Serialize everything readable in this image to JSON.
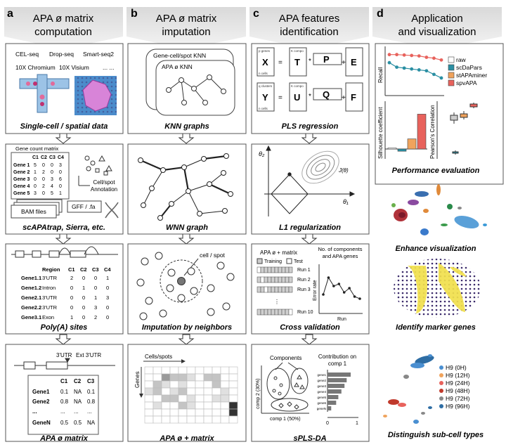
{
  "columns": [
    {
      "letter": "a",
      "title_lines": [
        "APA ø matrix",
        "computation"
      ]
    },
    {
      "letter": "b",
      "title_lines": [
        "APA ø matrix",
        "imputation"
      ]
    },
    {
      "letter": "c",
      "title_lines": [
        "APA features",
        "identification"
      ]
    },
    {
      "letter": "d",
      "title_lines": [
        "Application",
        "and visualization"
      ]
    }
  ],
  "colA": {
    "tech_row1": [
      "CEL-seq",
      "Drop-seq",
      "Smart-seq2"
    ],
    "tech_row2": [
      "10X Chromium",
      "10X Visium",
      "... ..."
    ],
    "caption1": "Single-cell / spatial data",
    "gene_count_title": "Gene count matrix",
    "gc_cols": [
      "C1",
      "C2",
      "C3",
      "C4"
    ],
    "gc_rows": [
      [
        "Gene 1",
        "5",
        "0",
        "0",
        "3"
      ],
      [
        "Gene 2",
        "1",
        "2",
        "0",
        "0"
      ],
      [
        "Gene 3",
        "0",
        "0",
        "3",
        "6"
      ],
      [
        "Gene 4",
        "0",
        "2",
        "4",
        "0"
      ],
      [
        "Gene 5",
        "3",
        "0",
        "5",
        "1"
      ]
    ],
    "annotation_lines": [
      "Cell/spot",
      "Annotation"
    ],
    "bam_label": "BAM files",
    "gff_label": "GFF / .fa",
    "caption2": "scAPAtrap, Sierra, etc.",
    "pa_cols": [
      "Region",
      "C1",
      "C2",
      "C3",
      "C4"
    ],
    "pa_rows": [
      [
        "Gene1.1",
        "3'UTR",
        "2",
        "0",
        "0",
        "1"
      ],
      [
        "Gene1.2",
        "Intron",
        "0",
        "1",
        "0",
        "0"
      ],
      [
        "Gene2.1",
        "3'UTR",
        "0",
        "0",
        "1",
        "3"
      ],
      [
        "Gene2.2",
        "3'UTR",
        "0",
        "0",
        "3",
        "0"
      ],
      [
        "Gene3.1",
        "Exon",
        "1",
        "0",
        "2",
        "0"
      ]
    ],
    "caption3": "Poly(A) sites",
    "utr_label": "3'UTR",
    "ext_utr_label": "Ext 3'UTR",
    "apa_cols": [
      "C1",
      "C2",
      "C3"
    ],
    "apa_rows": [
      [
        "Gene1",
        "0.1",
        "NA",
        "0.1"
      ],
      [
        "Gene2",
        "0.8",
        "NA",
        "0.8"
      ],
      [
        "...",
        "...",
        "...",
        "..."
      ],
      [
        "GeneN",
        "0.5",
        "0.5",
        "NA"
      ]
    ],
    "caption4": "APA ø matrix"
  },
  "colB": {
    "knn_back": "Gene-cell/spot KNN",
    "knn_front": "APA ø KNN",
    "caption1": "KNN graphs",
    "caption2": "WNN graph",
    "cell_spot_label": "cell / spot",
    "caption3": "Imputation by neighbors",
    "cells_spots_label": "Cells/spots",
    "genes_label": "Genes",
    "heat_rows": [
      [
        0,
        0,
        0,
        0,
        0,
        0,
        0,
        0,
        0,
        0,
        0
      ],
      [
        0,
        0,
        3,
        2,
        2,
        1,
        0,
        2,
        2,
        0,
        0
      ],
      [
        0,
        2,
        1,
        0,
        1,
        0,
        0,
        0,
        2,
        0,
        0
      ],
      [
        1,
        2,
        0,
        1,
        2,
        0,
        0,
        0,
        0,
        1,
        0
      ],
      [
        0,
        0,
        2,
        2,
        0,
        1,
        0,
        0,
        1,
        1,
        0
      ],
      [
        0,
        1,
        0,
        0,
        2,
        1,
        0,
        0,
        0,
        0,
        4
      ],
      [
        0,
        0,
        0,
        0,
        0,
        0,
        0,
        0,
        0,
        0,
        4
      ],
      [
        0,
        0,
        0,
        0,
        0,
        0,
        0,
        0,
        0,
        0,
        0
      ]
    ],
    "caption4": "APA ø + matrix"
  },
  "colC": {
    "pls_small_x_top": "p genes",
    "pls_small_x_bot": "n cells",
    "pls_small_y_top": "q clusters",
    "pls_small_y_bot": "n cells",
    "pls_small_k": "K compo",
    "pls_x": "X",
    "pls_t": "T",
    "pls_p": "P",
    "pls_e": "E",
    "pls_y": "Y",
    "pls_u": "U",
    "pls_q": "Q",
    "pls_f": "F",
    "caption1": "PLS regression",
    "theta2": "θ₂",
    "theta1": "θ₁",
    "j_theta": "J(θ)",
    "caption2": "L1 regularization",
    "cv_title": "APA ø + matrix",
    "cv_training": "Training",
    "cv_test": "Test",
    "cv_runs": [
      "Run 1",
      "Run 2",
      "Run 3",
      "Run 10"
    ],
    "cv_right_title": [
      "No. of components",
      "and APA genes"
    ],
    "cv_error_label": "Error rate",
    "cv_run_label": "Run",
    "cv_error_values": [
      0.35,
      0.75,
      0.55,
      0.6,
      0.4,
      0.5,
      0.3,
      0.25
    ],
    "caption3": "Cross validation",
    "spls_components": "Components",
    "spls_contrib": [
      "Contribution on",
      "comp 1"
    ],
    "spls_xlabel": "comp 1 (50%)",
    "spls_ylabel": "comp 2 (30%)",
    "spls_genes": [
      "gene1",
      "gene2",
      "gene3",
      "gene4",
      "gene5",
      "gene6",
      "geneN"
    ],
    "spls_gene_values": [
      0.75,
      0.62,
      0.55,
      0.45,
      0.35,
      0.28,
      0.12
    ],
    "spls_axis_ticks": [
      "0",
      "1"
    ],
    "caption4": "sPLS-DA"
  },
  "colD": {
    "recall_label": "Recall",
    "legend": [
      {
        "name": "raw",
        "color": "#ffffff"
      },
      {
        "name": "scDaPars",
        "color": "#2a8fa3"
      },
      {
        "name": "stAPAminer",
        "color": "#f0a35c"
      },
      {
        "name": "spvAPA",
        "color": "#e8625c"
      }
    ],
    "recall_series": [
      {
        "color": "#e8625c",
        "values": [
          0.88,
          0.88,
          0.87,
          0.86,
          0.85,
          0.82,
          0.8,
          0.76
        ]
      },
      {
        "color": "#2a8fa3",
        "values": [
          0.7,
          0.6,
          0.58,
          0.56,
          0.54,
          0.52,
          0.44,
          0.36
        ]
      }
    ],
    "silhouette_label": "Silhouette coefficient",
    "silhouette_values": [
      0.02,
      -0.04,
      0.18,
      0.62
    ],
    "silhouette_colors": [
      "#ffffff",
      "#2a8fa3",
      "#f0a35c",
      "#e8625c"
    ],
    "pearson_label": "Pearson's Correlation",
    "caption1": "Performance evaluation",
    "caption2": "Enhance visualization",
    "caption3": "Identify marker genes",
    "time_legend": [
      {
        "name": "H9 (0H)",
        "color": "#4a8fd1"
      },
      {
        "name": "H9 (12H)",
        "color": "#f0a35c"
      },
      {
        "name": "H9 (24H)",
        "color": "#e8625c"
      },
      {
        "name": "H9 (48H)",
        "color": "#c0392b"
      },
      {
        "name": "H9 (72H)",
        "color": "#888888"
      },
      {
        "name": "H9 (96H)",
        "color": "#2e6da4"
      }
    ],
    "caption4": "Distinguish sub-cell types"
  }
}
